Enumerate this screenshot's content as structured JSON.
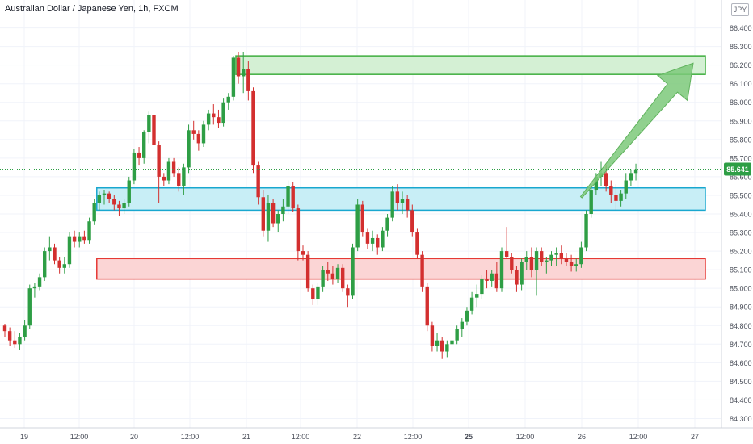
{
  "title": "Australian Dollar / Japanese Yen, 1h, FXCM",
  "currency_badge": "JPY",
  "colors": {
    "up": "#26a69a",
    "up_fill": "#2e9e45",
    "down": "#d32f2f",
    "grid": "#f0f3fa",
    "axis_text": "#4a4e59",
    "price_label_bg": "#2e9e45",
    "resistance_fill": "#d4f0d4",
    "resistance_stroke": "#3fae3f",
    "pivot_fill": "#c8eef6",
    "pivot_stroke": "#19a7cf",
    "support_fill": "#fbd5d5",
    "support_stroke": "#e53935",
    "arrow": "#7cc97a"
  },
  "chart_data": {
    "type": "candlestick",
    "symbol": "AUDJPY",
    "timeframe": "1h",
    "ylim": [
      84.25,
      86.55
    ],
    "y_ticks": [
      "84.300",
      "84.400",
      "84.500",
      "84.600",
      "84.700",
      "84.800",
      "84.900",
      "85.000",
      "85.100",
      "85.200",
      "85.300",
      "85.400",
      "85.500",
      "85.600",
      "85.700",
      "85.800",
      "85.900",
      "86.000",
      "86.100",
      "86.200",
      "86.300",
      "86.400"
    ],
    "x_ticks": [
      "19",
      "12:00",
      "20",
      "12:00",
      "21",
      "12:00",
      "22",
      "12:00",
      "25",
      "12:00",
      "26",
      "12:00",
      "27"
    ],
    "x_tick_bold": [
      "25"
    ],
    "last_price": "85.641",
    "candles": [
      [
        84.8,
        84.81,
        84.74,
        84.77
      ],
      [
        84.77,
        84.79,
        84.69,
        84.72
      ],
      [
        84.72,
        84.77,
        84.68,
        84.7
      ],
      [
        84.7,
        84.76,
        84.67,
        84.74
      ],
      [
        84.74,
        84.83,
        84.72,
        84.8
      ],
      [
        84.8,
        85.02,
        84.78,
        85.0
      ],
      [
        85.0,
        85.03,
        84.95,
        85.01
      ],
      [
        85.01,
        85.08,
        84.99,
        85.06
      ],
      [
        85.06,
        85.22,
        85.04,
        85.2
      ],
      [
        85.2,
        85.28,
        85.15,
        85.22
      ],
      [
        85.22,
        85.24,
        85.13,
        85.15
      ],
      [
        85.15,
        85.17,
        85.08,
        85.11
      ],
      [
        85.11,
        85.17,
        85.08,
        85.13
      ],
      [
        85.13,
        85.3,
        85.11,
        85.28
      ],
      [
        85.28,
        85.31,
        85.22,
        85.25
      ],
      [
        85.25,
        85.3,
        85.22,
        85.28
      ],
      [
        85.28,
        85.31,
        85.24,
        85.26
      ],
      [
        85.26,
        85.38,
        85.24,
        85.36
      ],
      [
        85.36,
        85.48,
        85.34,
        85.46
      ],
      [
        85.46,
        85.52,
        85.42,
        85.5
      ],
      [
        85.5,
        85.53,
        85.45,
        85.51
      ],
      [
        85.51,
        85.52,
        85.46,
        85.48
      ],
      [
        85.48,
        85.5,
        85.42,
        85.45
      ],
      [
        85.45,
        85.47,
        85.39,
        85.43
      ],
      [
        85.43,
        85.48,
        85.4,
        85.46
      ],
      [
        85.46,
        85.6,
        85.44,
        85.58
      ],
      [
        85.58,
        85.75,
        85.56,
        85.73
      ],
      [
        85.73,
        85.76,
        85.66,
        85.7
      ],
      [
        85.7,
        85.85,
        85.67,
        85.84
      ],
      [
        85.84,
        85.95,
        85.78,
        85.93
      ],
      [
        85.93,
        85.94,
        85.74,
        85.77
      ],
      [
        85.77,
        85.79,
        85.46,
        85.6
      ],
      [
        85.6,
        85.62,
        85.55,
        85.58
      ],
      [
        85.58,
        85.7,
        85.56,
        85.68
      ],
      [
        85.68,
        85.7,
        85.6,
        85.62
      ],
      [
        85.62,
        85.65,
        85.52,
        85.55
      ],
      [
        85.55,
        85.67,
        85.5,
        85.65
      ],
      [
        85.65,
        85.88,
        85.62,
        85.85
      ],
      [
        85.85,
        85.9,
        85.8,
        85.83
      ],
      [
        85.83,
        85.85,
        85.74,
        85.78
      ],
      [
        85.78,
        85.9,
        85.76,
        85.88
      ],
      [
        85.88,
        85.96,
        85.85,
        85.94
      ],
      [
        85.94,
        85.99,
        85.88,
        85.92
      ],
      [
        85.92,
        85.96,
        85.86,
        85.89
      ],
      [
        85.89,
        86.02,
        85.87,
        86.0
      ],
      [
        86.0,
        86.05,
        85.96,
        86.03
      ],
      [
        86.03,
        86.25,
        86.01,
        86.24
      ],
      [
        86.24,
        86.27,
        86.1,
        86.14
      ],
      [
        86.14,
        86.27,
        86.05,
        86.18
      ],
      [
        86.18,
        86.22,
        86.01,
        86.06
      ],
      [
        86.06,
        86.08,
        85.62,
        85.66
      ],
      [
        85.66,
        85.68,
        85.45,
        85.49
      ],
      [
        85.49,
        85.53,
        85.28,
        85.31
      ],
      [
        85.31,
        85.5,
        85.25,
        85.46
      ],
      [
        85.46,
        85.48,
        85.33,
        85.35
      ],
      [
        85.35,
        85.42,
        85.3,
        85.4
      ],
      [
        85.4,
        85.48,
        85.36,
        85.44
      ],
      [
        85.44,
        85.58,
        85.4,
        85.55
      ],
      [
        85.55,
        85.57,
        85.41,
        85.43
      ],
      [
        85.43,
        85.45,
        85.15,
        85.2
      ],
      [
        85.2,
        85.23,
        85.15,
        85.18
      ],
      [
        85.18,
        85.2,
        84.98,
        85.0
      ],
      [
        85.0,
        85.02,
        84.91,
        84.94
      ],
      [
        84.94,
        85.03,
        84.91,
        85.01
      ],
      [
        85.01,
        85.12,
        84.98,
        85.1
      ],
      [
        85.1,
        85.14,
        85.04,
        85.08
      ],
      [
        85.08,
        85.12,
        85.02,
        85.05
      ],
      [
        85.05,
        85.13,
        85.03,
        85.11
      ],
      [
        85.11,
        85.13,
        84.98,
        85.0
      ],
      [
        85.0,
        85.02,
        84.9,
        84.96
      ],
      [
        84.96,
        85.24,
        84.94,
        85.22
      ],
      [
        85.22,
        85.48,
        85.2,
        85.45
      ],
      [
        85.45,
        85.47,
        85.28,
        85.3
      ],
      [
        85.3,
        85.32,
        85.21,
        85.24
      ],
      [
        85.24,
        85.31,
        85.2,
        85.27
      ],
      [
        85.27,
        85.29,
        85.18,
        85.22
      ],
      [
        85.22,
        85.33,
        85.2,
        85.31
      ],
      [
        85.31,
        85.4,
        85.28,
        85.38
      ],
      [
        85.38,
        85.55,
        85.36,
        85.52
      ],
      [
        85.52,
        85.56,
        85.42,
        85.46
      ],
      [
        85.46,
        85.52,
        85.4,
        85.48
      ],
      [
        85.48,
        85.5,
        85.38,
        85.42
      ],
      [
        85.42,
        85.45,
        85.28,
        85.3
      ],
      [
        85.3,
        85.32,
        85.16,
        85.18
      ],
      [
        85.18,
        85.2,
        84.98,
        85.01
      ],
      [
        85.01,
        85.03,
        84.77,
        84.8
      ],
      [
        84.8,
        84.82,
        84.66,
        84.69
      ],
      [
        84.69,
        84.76,
        84.66,
        84.72
      ],
      [
        84.72,
        84.74,
        84.62,
        84.66
      ],
      [
        84.66,
        84.72,
        84.63,
        84.7
      ],
      [
        84.7,
        84.74,
        84.66,
        84.72
      ],
      [
        84.72,
        84.8,
        84.7,
        84.78
      ],
      [
        84.78,
        84.84,
        84.74,
        84.82
      ],
      [
        84.82,
        84.9,
        84.8,
        84.88
      ],
      [
        84.88,
        84.98,
        84.86,
        84.95
      ],
      [
        84.95,
        85.02,
        84.9,
        84.97
      ],
      [
        84.97,
        85.07,
        84.94,
        85.05
      ],
      [
        85.05,
        85.1,
        85.0,
        85.04
      ],
      [
        85.04,
        85.1,
        85.01,
        85.08
      ],
      [
        85.08,
        85.14,
        84.98,
        85.0
      ],
      [
        85.0,
        85.22,
        84.98,
        85.2
      ],
      [
        85.2,
        85.33,
        85.16,
        85.17
      ],
      [
        85.17,
        85.19,
        85.08,
        85.1
      ],
      [
        85.1,
        85.12,
        84.98,
        85.02
      ],
      [
        85.02,
        85.16,
        84.99,
        85.14
      ],
      [
        85.14,
        85.2,
        85.1,
        85.17
      ],
      [
        85.17,
        85.22,
        85.06,
        85.1
      ],
      [
        85.1,
        85.22,
        84.96,
        85.2
      ],
      [
        85.2,
        85.22,
        85.12,
        85.14
      ],
      [
        85.14,
        85.17,
        85.08,
        85.15
      ],
      [
        85.15,
        85.2,
        85.12,
        85.18
      ],
      [
        85.18,
        85.22,
        85.12,
        85.19
      ],
      [
        85.19,
        85.23,
        85.13,
        85.16
      ],
      [
        85.16,
        85.19,
        85.12,
        85.14
      ],
      [
        85.14,
        85.18,
        85.09,
        85.12
      ],
      [
        85.12,
        85.16,
        85.09,
        85.13
      ],
      [
        85.13,
        85.25,
        85.11,
        85.22
      ],
      [
        85.22,
        85.42,
        85.2,
        85.4
      ],
      [
        85.4,
        85.56,
        85.38,
        85.53
      ],
      [
        85.53,
        85.62,
        85.5,
        85.6
      ],
      [
        85.6,
        85.68,
        85.55,
        85.62
      ],
      [
        85.62,
        85.66,
        85.52,
        85.55
      ],
      [
        85.55,
        85.58,
        85.46,
        85.5
      ],
      [
        85.5,
        85.56,
        85.42,
        85.47
      ],
      [
        85.47,
        85.53,
        85.44,
        85.51
      ],
      [
        85.51,
        85.62,
        85.48,
        85.58
      ],
      [
        85.58,
        85.64,
        85.55,
        85.62
      ],
      [
        85.62,
        85.67,
        85.58,
        85.64
      ]
    ],
    "zones": [
      {
        "kind": "resistance",
        "from": 86.15,
        "to": 86.25,
        "x_start": 46.5
      },
      {
        "kind": "pivot",
        "from": 85.42,
        "to": 85.54,
        "x_start": 18.5
      },
      {
        "kind": "support",
        "from": 85.05,
        "to": 85.16,
        "x_start": 18.5
      }
    ],
    "arrow": {
      "from_index": 116,
      "from_price": 85.49,
      "to_index": 129,
      "to_price": 86.21
    }
  }
}
